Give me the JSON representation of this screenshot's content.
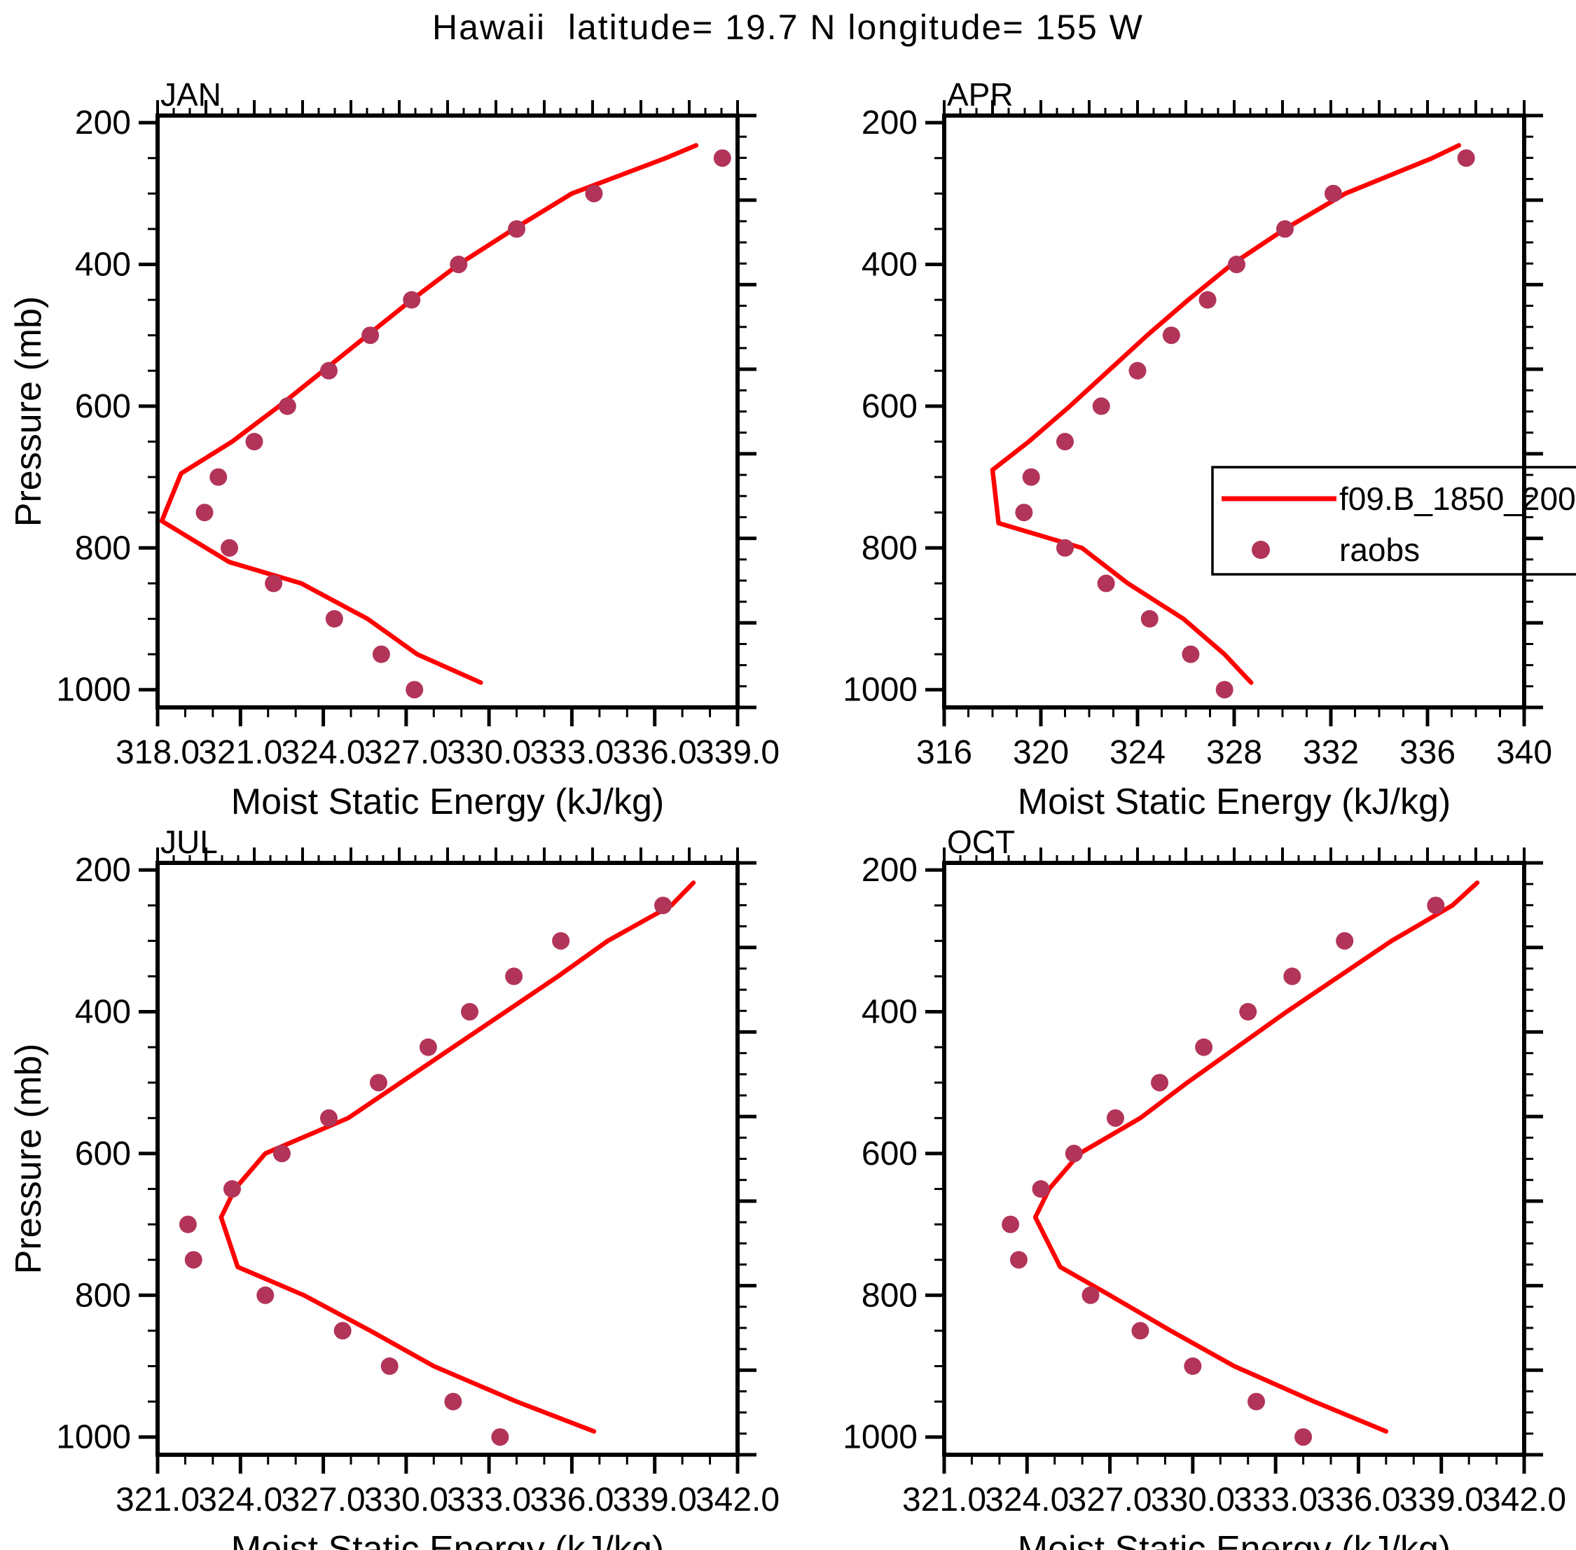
{
  "title": "Hawaii  latitude= 19.7 N longitude= 155 W",
  "colors": {
    "line": "#FF0000",
    "dot": "#B23459",
    "axis": "#000000"
  },
  "legend": {
    "entries": [
      {
        "label": "f09.B_1850_200",
        "type": "line"
      },
      {
        "label": "raobs",
        "type": "dot"
      }
    ]
  },
  "pressure_levels": [
    1000,
    950,
    900,
    850,
    800,
    750,
    700,
    650,
    600,
    550,
    500,
    450,
    400,
    350,
    300,
    250
  ],
  "chart_data": [
    {
      "type": "line+scatter",
      "panel": "JAN",
      "xlabel": "Moist Static Energy (kJ/kg)",
      "ylabel": "Pressure (mb)",
      "xlim": [
        318,
        339
      ],
      "xticks": [
        318,
        321,
        324,
        327,
        330,
        333,
        336,
        339
      ],
      "xtick_labels": [
        "318.0",
        "321.0",
        "324.0",
        "327.0",
        "330.0",
        "333.0",
        "336.0",
        "339.0"
      ],
      "xminor_step": 1,
      "ylim": [
        200,
        1000
      ],
      "yticks": [
        200,
        400,
        600,
        800,
        1000
      ],
      "ytick_labels": [
        "200",
        "400",
        "600",
        "800",
        "1000"
      ],
      "yminor_step": 50,
      "series": [
        {
          "name": "f09.B_1850_200",
          "type": "line",
          "points_pv": [
            [
              232,
              337.5
            ],
            [
              250,
              336.4
            ],
            [
              300,
              333.0
            ],
            [
              350,
              330.9
            ],
            [
              400,
              328.9
            ],
            [
              450,
              327.2
            ],
            [
              500,
              325.6
            ],
            [
              550,
              324.0
            ],
            [
              600,
              322.4
            ],
            [
              650,
              320.7
            ],
            [
              695,
              318.85
            ],
            [
              762,
              318.15
            ],
            [
              820,
              320.6
            ],
            [
              850,
              323.2
            ],
            [
              900,
              325.6
            ],
            [
              950,
              327.4
            ],
            [
              990,
              329.7
            ]
          ]
        },
        {
          "name": "raobs",
          "type": "scatter",
          "pressures": [
            1000,
            950,
            900,
            850,
            800,
            750,
            700,
            650,
            600,
            550,
            500,
            450,
            400,
            350,
            300,
            250
          ],
          "values": [
            327.3,
            326.1,
            324.4,
            322.2,
            320.6,
            319.7,
            320.2,
            321.5,
            322.7,
            324.2,
            325.7,
            327.2,
            328.9,
            331.0,
            333.8,
            338.45
          ]
        }
      ]
    },
    {
      "type": "line+scatter",
      "panel": "APR",
      "xlabel": "Moist Static Energy (kJ/kg)",
      "ylabel": "Pressure (mb)",
      "xlim": [
        316,
        340
      ],
      "xticks": [
        316,
        320,
        324,
        328,
        332,
        336,
        340
      ],
      "xtick_labels": [
        "316",
        "320",
        "324",
        "328",
        "332",
        "336",
        "340"
      ],
      "xminor_step": 1,
      "ylim": [
        200,
        1000
      ],
      "yticks": [
        200,
        400,
        600,
        800,
        1000
      ],
      "ytick_labels": [
        "200",
        "400",
        "600",
        "800",
        "1000"
      ],
      "yminor_step": 50,
      "series": [
        {
          "name": "f09.B_1850_200",
          "type": "line",
          "points_pv": [
            [
              232,
              337.3
            ],
            [
              250,
              336.2
            ],
            [
              300,
              332.6
            ],
            [
              350,
              330.1
            ],
            [
              400,
              327.9
            ],
            [
              450,
              326.1
            ],
            [
              500,
              324.4
            ],
            [
              550,
              322.8
            ],
            [
              600,
              321.2
            ],
            [
              650,
              319.5
            ],
            [
              690,
              318.0
            ],
            [
              765,
              318.25
            ],
            [
              800,
              321.7
            ],
            [
              850,
              323.6
            ],
            [
              900,
              325.9
            ],
            [
              950,
              327.6
            ],
            [
              990,
              328.7
            ]
          ]
        },
        {
          "name": "raobs",
          "type": "scatter",
          "pressures": [
            1000,
            950,
            900,
            850,
            800,
            750,
            700,
            650,
            600,
            550,
            500,
            450,
            400,
            350,
            300,
            250
          ],
          "values": [
            327.6,
            326.2,
            324.5,
            322.7,
            321.0,
            319.3,
            319.6,
            321.0,
            322.5,
            324.0,
            325.4,
            326.9,
            328.1,
            330.1,
            332.1,
            337.6
          ]
        }
      ]
    },
    {
      "type": "line+scatter",
      "panel": "JUL",
      "xlabel": "Moist Static Energy (kJ/kg)",
      "ylabel": "Pressure (mb)",
      "xlim": [
        321,
        342
      ],
      "xticks": [
        321,
        324,
        327,
        330,
        333,
        336,
        339,
        342
      ],
      "xtick_labels": [
        "321.0",
        "324.0",
        "327.0",
        "330.0",
        "333.0",
        "336.0",
        "339.0",
        "342.0"
      ],
      "xminor_step": 1,
      "ylim": [
        200,
        1000
      ],
      "yticks": [
        200,
        400,
        600,
        800,
        1000
      ],
      "ytick_labels": [
        "200",
        "400",
        "600",
        "800",
        "1000"
      ],
      "yminor_step": 50,
      "series": [
        {
          "name": "f09.B_1850_200",
          "type": "line",
          "points_pv": [
            [
              218,
              340.4
            ],
            [
              250,
              339.6
            ],
            [
              300,
              337.3
            ],
            [
              350,
              335.5
            ],
            [
              400,
              333.6
            ],
            [
              450,
              331.7
            ],
            [
              500,
              329.8
            ],
            [
              550,
              327.9
            ],
            [
              600,
              324.9
            ],
            [
              650,
              323.8
            ],
            [
              690,
              323.3
            ],
            [
              760,
              323.9
            ],
            [
              800,
              326.3
            ],
            [
              850,
              328.7
            ],
            [
              900,
              331.0
            ],
            [
              950,
              334.0
            ],
            [
              992,
              336.8
            ]
          ]
        },
        {
          "name": "raobs",
          "type": "scatter",
          "pressures": [
            1000,
            950,
            900,
            850,
            800,
            750,
            700,
            650,
            600,
            550,
            500,
            450,
            400,
            350,
            300,
            250
          ],
          "values": [
            333.4,
            331.7,
            329.4,
            327.7,
            324.9,
            322.3,
            322.1,
            323.7,
            325.5,
            327.2,
            329.0,
            330.8,
            332.3,
            333.9,
            335.6,
            339.3
          ]
        }
      ]
    },
    {
      "type": "line+scatter",
      "panel": "OCT",
      "xlabel": "Moist Static Energy (kJ/kg)",
      "ylabel": "Pressure (mb)",
      "xlim": [
        321,
        342
      ],
      "xticks": [
        321,
        324,
        327,
        330,
        333,
        336,
        339,
        342
      ],
      "xtick_labels": [
        "321.0",
        "324.0",
        "327.0",
        "330.0",
        "333.0",
        "336.0",
        "339.0",
        "342.0"
      ],
      "xminor_step": 1,
      "ylim": [
        200,
        1000
      ],
      "yticks": [
        200,
        400,
        600,
        800,
        1000
      ],
      "ytick_labels": [
        "200",
        "400",
        "600",
        "800",
        "1000"
      ],
      "yminor_step": 50,
      "series": [
        {
          "name": "f09.B_1850_200",
          "type": "line",
          "points_pv": [
            [
              218,
              340.3
            ],
            [
              250,
              339.4
            ],
            [
              300,
              337.2
            ],
            [
              350,
              335.3
            ],
            [
              400,
              333.4
            ],
            [
              450,
              331.6
            ],
            [
              500,
              329.8
            ],
            [
              550,
              328.1
            ],
            [
              600,
              325.9
            ],
            [
              650,
              324.8
            ],
            [
              690,
              324.3
            ],
            [
              760,
              325.2
            ],
            [
              800,
              327.0
            ],
            [
              850,
              329.2
            ],
            [
              900,
              331.5
            ],
            [
              950,
              334.4
            ],
            [
              992,
              337.0
            ]
          ]
        },
        {
          "name": "raobs",
          "type": "scatter",
          "pressures": [
            1000,
            950,
            900,
            850,
            800,
            750,
            700,
            650,
            600,
            550,
            500,
            450,
            400,
            350,
            300,
            250
          ],
          "values": [
            334.0,
            332.3,
            330.0,
            328.1,
            326.3,
            323.7,
            323.4,
            324.5,
            325.7,
            327.2,
            328.8,
            330.4,
            332.0,
            333.6,
            335.5,
            338.8
          ]
        }
      ]
    }
  ]
}
